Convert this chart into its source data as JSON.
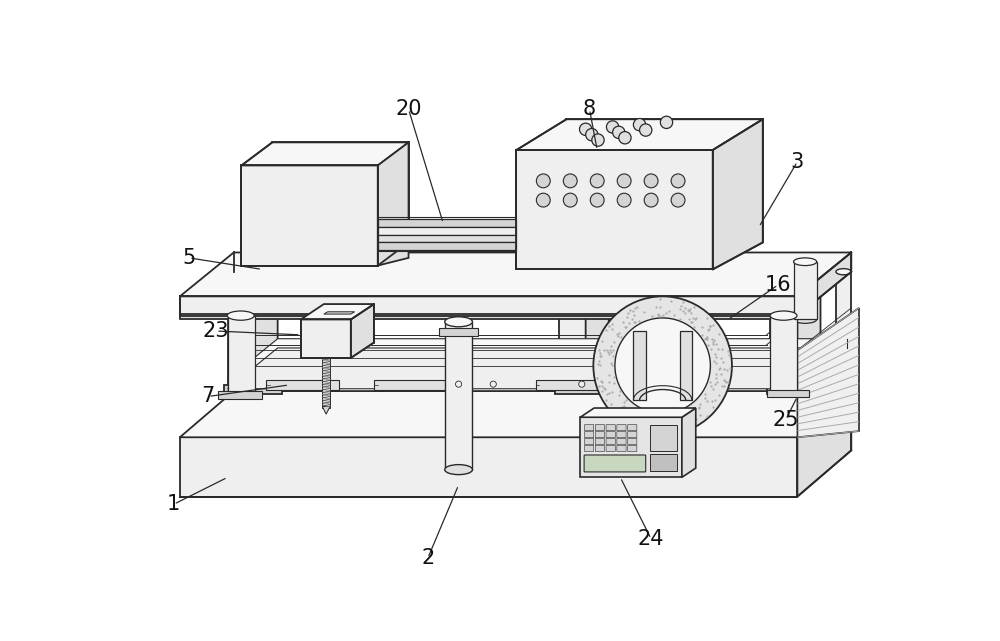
{
  "bg_color": "#ffffff",
  "lc": "#2a2a2a",
  "fc_light": "#f7f7f7",
  "fc_mid": "#efefef",
  "fc_dark": "#e0e0e0",
  "fc_darker": "#d4d4d4",
  "figsize": [
    10.0,
    6.41
  ],
  "labels": [
    [
      "1",
      60,
      555,
      130,
      520
    ],
    [
      "2",
      390,
      625,
      430,
      530
    ],
    [
      "3",
      870,
      110,
      820,
      195
    ],
    [
      "5",
      80,
      235,
      175,
      250
    ],
    [
      "7",
      105,
      415,
      210,
      400
    ],
    [
      "8",
      600,
      42,
      610,
      95
    ],
    [
      "16",
      845,
      270,
      780,
      315
    ],
    [
      "20",
      365,
      42,
      410,
      190
    ],
    [
      "23",
      115,
      330,
      225,
      335
    ],
    [
      "24",
      680,
      600,
      640,
      520
    ],
    [
      "25",
      855,
      445,
      870,
      415
    ]
  ]
}
